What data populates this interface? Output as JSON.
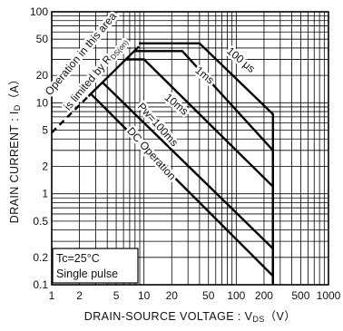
{
  "chart_data": {
    "type": "line",
    "xscale": "log",
    "yscale": "log",
    "xlim": [
      1,
      1000
    ],
    "ylim": [
      0.1,
      100
    ],
    "grid": true,
    "xlabel_main": "DRAIN-SOURCE  VOLTAGE : V",
    "xlabel_sub": "DS",
    "xlabel_unit": "（V）",
    "ylabel_main": "DRAIN  CURRENT : I",
    "ylabel_sub": "D",
    "ylabel_unit": "（A）",
    "x_ticks": [
      {
        "value": 1,
        "label": "1"
      },
      {
        "value": 2,
        "label": "2"
      },
      {
        "value": 5,
        "label": "5"
      },
      {
        "value": 10,
        "label": "10"
      },
      {
        "value": 20,
        "label": "20"
      },
      {
        "value": 50,
        "label": "50"
      },
      {
        "value": 100,
        "label": "100"
      },
      {
        "value": 200,
        "label": "200"
      },
      {
        "value": 500,
        "label": "500"
      },
      {
        "value": 1000,
        "label": "1000"
      }
    ],
    "y_ticks": [
      {
        "value": 0.1,
        "label": "0.1"
      },
      {
        "value": 0.2,
        "label": "0.2"
      },
      {
        "value": 0.5,
        "label": "0.5"
      },
      {
        "value": 1,
        "label": "1"
      },
      {
        "value": 2,
        "label": "2"
      },
      {
        "value": 5,
        "label": "5"
      },
      {
        "value": 10,
        "label": "10"
      },
      {
        "value": 20,
        "label": "20"
      },
      {
        "value": 50,
        "label": "50"
      },
      {
        "value": 100,
        "label": "100"
      }
    ],
    "rds_limit": {
      "dashed_points": [
        [
          1,
          4.7
        ],
        [
          2.5,
          11.8
        ]
      ],
      "solid_points": [
        [
          2.5,
          11.8
        ],
        [
          8.8,
          41.5
        ]
      ],
      "label_main": "Operation in this area",
      "label_line2": "is limited by R",
      "label_sub": "DS(on)"
    },
    "series": [
      {
        "name": "100 μs",
        "points": [
          [
            8.8,
            45
          ],
          [
            40,
            45
          ],
          [
            250,
            7.5
          ],
          [
            250,
            0.1
          ]
        ]
      },
      {
        "name": "1ms",
        "points": [
          [
            7.8,
            37
          ],
          [
            26,
            37
          ],
          [
            250,
            3.0
          ],
          [
            250,
            0.1
          ]
        ]
      },
      {
        "name": "10ms",
        "points": [
          [
            6.4,
            30
          ],
          [
            10,
            30
          ],
          [
            250,
            1.2
          ],
          [
            250,
            0.1
          ]
        ]
      },
      {
        "name": "Pw=100ms",
        "points": [
          [
            3.6,
            16.5
          ],
          [
            250,
            0.25
          ],
          [
            250,
            0.1
          ]
        ]
      },
      {
        "name": "DC  Operation",
        "points": [
          [
            2.7,
            12.3
          ],
          [
            250,
            0.125
          ],
          [
            250,
            0.1
          ]
        ]
      }
    ],
    "series_labels": [
      {
        "text": "100 μs"
      },
      {
        "text": "1ms"
      },
      {
        "text": "10ms"
      },
      {
        "text": "Pw=100ms"
      },
      {
        "text": "DC  Operation"
      }
    ],
    "note": {
      "line1_main": "Tc=25",
      "line1_deg": "°C",
      "line2": "Single pulse"
    }
  }
}
